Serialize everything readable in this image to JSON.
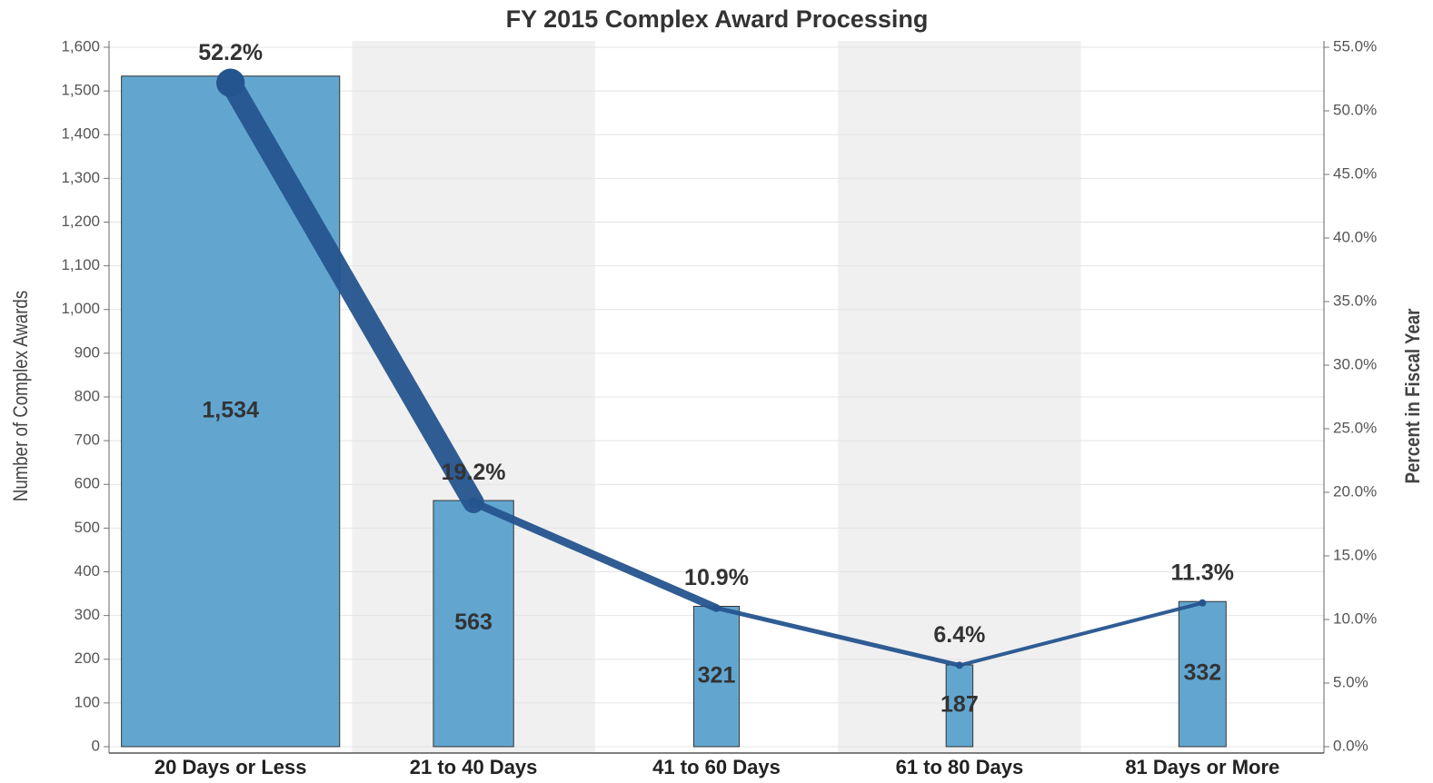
{
  "chart_data": {
    "type": "bar-line",
    "title": "FY 2015 Complex Award Processing",
    "y_label": "Number of Complex Awards",
    "y2_label": "Percent in Fiscal Year",
    "categories": [
      "20 Days or Less",
      "21 to 40 Days",
      "41 to 60 Days",
      "61 to 80 Days",
      "81 Days or More"
    ],
    "series": [
      {
        "type": "bar",
        "color": "#62a6d0",
        "values": [
          1534,
          563,
          321,
          187,
          332
        ],
        "value_labels": [
          "1,534",
          "563",
          "321",
          "187",
          "332"
        ]
      },
      {
        "type": "line",
        "color": "#25558f",
        "axis": "y2",
        "values": [
          52.2,
          19.2,
          10.9,
          6.4,
          11.3
        ],
        "value_labels": [
          "52.2%",
          "19.2%",
          "10.9%",
          "6.4%",
          "11.3%"
        ]
      }
    ],
    "ylim": [
      0,
      1600
    ],
    "yticks": [
      0,
      100,
      200,
      300,
      400,
      500,
      600,
      700,
      800,
      900,
      {
        "value": 1000,
        "label": "1,000"
      },
      {
        "value": 1100,
        "label": "1,100"
      },
      {
        "value": 1200,
        "label": "1,200"
      },
      {
        "value": 1300,
        "label": "1,300"
      },
      {
        "value": 1400,
        "label": "1,400"
      },
      {
        "value": 1500,
        "label": "1,500"
      },
      {
        "value": 1600,
        "label": "1,600"
      }
    ],
    "y2lim": [
      0,
      55
    ],
    "y2ticks": [
      {
        "value": 0,
        "label": "0.0%"
      },
      {
        "value": 5,
        "label": "5.0%"
      },
      {
        "value": 10,
        "label": "10.0%"
      },
      {
        "value": 15,
        "label": "15.0%"
      },
      {
        "value": 20,
        "label": "20.0%"
      },
      {
        "value": 25,
        "label": "25.0%"
      },
      {
        "value": 30,
        "label": "30.0%"
      },
      {
        "value": 35,
        "label": "35.0%"
      },
      {
        "value": 40,
        "label": "40.0%"
      },
      {
        "value": 45,
        "label": "45.0%"
      },
      {
        "value": 50,
        "label": "50.0%"
      },
      {
        "value": 55,
        "label": "55.0%"
      }
    ],
    "grid": true
  }
}
